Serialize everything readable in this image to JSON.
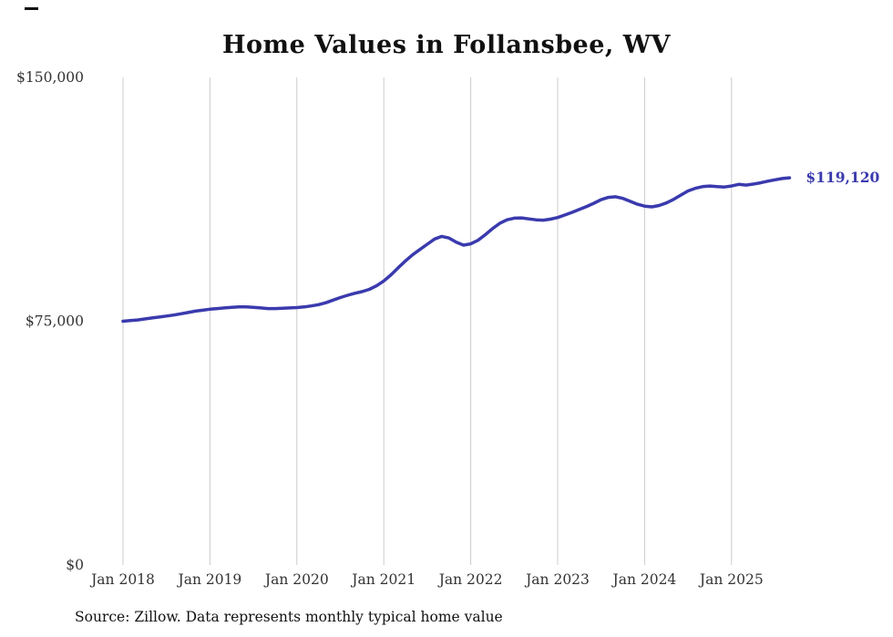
{
  "page": {
    "title": "Home Values in Follansbee, WV",
    "source_note": "Source: Zillow. Data represents monthly typical home value"
  },
  "chart_data": {
    "type": "line",
    "title": "Home Values in Follansbee, WV",
    "xlabel": "",
    "ylabel": "",
    "ylim": [
      0,
      150000
    ],
    "grid": "vertical-only",
    "legend": "none",
    "line_color": "#3a3aae",
    "grid_color": "#cccccc",
    "axis_text_color": "#333333",
    "start_month": "2018-01",
    "end_month": "2025-09",
    "x_tick_labels": [
      "Jan 2018",
      "Jan 2019",
      "Jan 2020",
      "Jan 2021",
      "Jan 2022",
      "Jan 2023",
      "Jan 2024",
      "Jan 2025"
    ],
    "y_ticks": [
      {
        "value": 0,
        "label": "$0"
      },
      {
        "value": 75000,
        "label": "$75,000"
      },
      {
        "value": 150000,
        "label": "$150,000"
      }
    ],
    "end_label": "$119,120",
    "series": [
      {
        "name": "Typical home value",
        "monthly_values": [
          75000,
          75200,
          75400,
          75700,
          76000,
          76300,
          76600,
          76900,
          77300,
          77700,
          78100,
          78400,
          78700,
          78900,
          79100,
          79300,
          79400,
          79400,
          79300,
          79100,
          78900,
          78900,
          79000,
          79100,
          79200,
          79400,
          79700,
          80100,
          80700,
          81500,
          82300,
          83000,
          83600,
          84100,
          84800,
          85900,
          87400,
          89300,
          91500,
          93600,
          95500,
          97100,
          98700,
          100300,
          101100,
          100600,
          99300,
          98400,
          98800,
          99900,
          101600,
          103500,
          105100,
          106200,
          106700,
          106800,
          106500,
          106200,
          106100,
          106400,
          106900,
          107700,
          108500,
          109400,
          110300,
          111300,
          112400,
          113100,
          113300,
          112800,
          111900,
          111000,
          110400,
          110200,
          110600,
          111400,
          112500,
          113800,
          115100,
          115900,
          116400,
          116600,
          116400,
          116300,
          116600,
          117100,
          116900,
          117200,
          117600,
          118100,
          118500,
          118900,
          119120
        ]
      }
    ]
  }
}
